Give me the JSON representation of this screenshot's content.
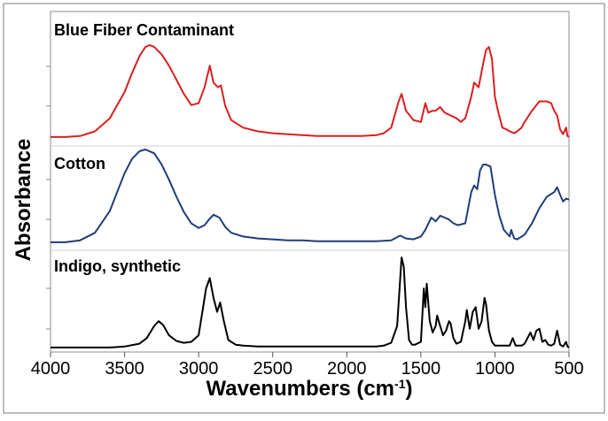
{
  "chart_data": {
    "type": "line",
    "xlabel_main": "Wavenumbers (cm",
    "xlabel_sup": "-1",
    "xlabel_close": ")",
    "ylabel": "Absorbance",
    "xlim": [
      4000,
      500
    ],
    "x_reversed": true,
    "x_ticks": [
      "4000",
      "3500",
      "3000",
      "2500",
      "2000",
      "1500",
      "1000",
      "500"
    ],
    "grid": false,
    "legend": "none",
    "series": [
      {
        "name": "Blue Fiber Contaminant",
        "color": "#d92020",
        "points": [
          [
            4000,
            0.02
          ],
          [
            3900,
            0.02
          ],
          [
            3800,
            0.03
          ],
          [
            3700,
            0.08
          ],
          [
            3600,
            0.22
          ],
          [
            3500,
            0.5
          ],
          [
            3450,
            0.7
          ],
          [
            3400,
            0.88
          ],
          [
            3360,
            0.98
          ],
          [
            3330,
            1.0
          ],
          [
            3300,
            0.98
          ],
          [
            3250,
            0.9
          ],
          [
            3200,
            0.78
          ],
          [
            3150,
            0.63
          ],
          [
            3100,
            0.48
          ],
          [
            3050,
            0.36
          ],
          [
            3000,
            0.38
          ],
          [
            2960,
            0.55
          ],
          [
            2925,
            0.78
          ],
          [
            2900,
            0.6
          ],
          [
            2870,
            0.55
          ],
          [
            2850,
            0.57
          ],
          [
            2820,
            0.35
          ],
          [
            2780,
            0.2
          ],
          [
            2700,
            0.12
          ],
          [
            2600,
            0.08
          ],
          [
            2500,
            0.06
          ],
          [
            2400,
            0.05
          ],
          [
            2300,
            0.04
          ],
          [
            2200,
            0.03
          ],
          [
            2100,
            0.03
          ],
          [
            2000,
            0.03
          ],
          [
            1900,
            0.03
          ],
          [
            1800,
            0.04
          ],
          [
            1750,
            0.06
          ],
          [
            1700,
            0.12
          ],
          [
            1650,
            0.4
          ],
          [
            1630,
            0.48
          ],
          [
            1600,
            0.3
          ],
          [
            1550,
            0.2
          ],
          [
            1500,
            0.18
          ],
          [
            1470,
            0.38
          ],
          [
            1450,
            0.28
          ],
          [
            1420,
            0.3
          ],
          [
            1400,
            0.3
          ],
          [
            1370,
            0.34
          ],
          [
            1340,
            0.28
          ],
          [
            1300,
            0.25
          ],
          [
            1260,
            0.22
          ],
          [
            1230,
            0.18
          ],
          [
            1200,
            0.22
          ],
          [
            1160,
            0.45
          ],
          [
            1140,
            0.6
          ],
          [
            1110,
            0.55
          ],
          [
            1080,
            0.8
          ],
          [
            1060,
            0.95
          ],
          [
            1040,
            0.98
          ],
          [
            1020,
            0.85
          ],
          [
            1000,
            0.45
          ],
          [
            980,
            0.3
          ],
          [
            950,
            0.12
          ],
          [
            920,
            0.1
          ],
          [
            900,
            0.08
          ],
          [
            870,
            0.06
          ],
          [
            850,
            0.08
          ],
          [
            820,
            0.12
          ],
          [
            800,
            0.18
          ],
          [
            750,
            0.3
          ],
          [
            700,
            0.4
          ],
          [
            650,
            0.4
          ],
          [
            620,
            0.38
          ],
          [
            600,
            0.3
          ],
          [
            580,
            0.25
          ],
          [
            560,
            0.1
          ],
          [
            540,
            0.05
          ],
          [
            520,
            0.12
          ],
          [
            510,
            0.03
          ],
          [
            500,
            0.02
          ]
        ]
      },
      {
        "name": "Cotton",
        "color": "#1f3d7a",
        "points": [
          [
            4000,
            0.02
          ],
          [
            3900,
            0.02
          ],
          [
            3800,
            0.04
          ],
          [
            3700,
            0.12
          ],
          [
            3600,
            0.35
          ],
          [
            3550,
            0.55
          ],
          [
            3500,
            0.75
          ],
          [
            3450,
            0.9
          ],
          [
            3400,
            0.98
          ],
          [
            3360,
            1.0
          ],
          [
            3300,
            0.96
          ],
          [
            3250,
            0.84
          ],
          [
            3200,
            0.68
          ],
          [
            3150,
            0.5
          ],
          [
            3100,
            0.34
          ],
          [
            3050,
            0.22
          ],
          [
            3000,
            0.17
          ],
          [
            2960,
            0.2
          ],
          [
            2930,
            0.26
          ],
          [
            2900,
            0.31
          ],
          [
            2860,
            0.28
          ],
          [
            2820,
            0.18
          ],
          [
            2780,
            0.12
          ],
          [
            2700,
            0.08
          ],
          [
            2600,
            0.06
          ],
          [
            2500,
            0.05
          ],
          [
            2400,
            0.04
          ],
          [
            2300,
            0.04
          ],
          [
            2200,
            0.03
          ],
          [
            2100,
            0.03
          ],
          [
            2000,
            0.03
          ],
          [
            1900,
            0.03
          ],
          [
            1800,
            0.03
          ],
          [
            1700,
            0.04
          ],
          [
            1640,
            0.09
          ],
          [
            1600,
            0.06
          ],
          [
            1550,
            0.05
          ],
          [
            1500,
            0.08
          ],
          [
            1470,
            0.15
          ],
          [
            1430,
            0.28
          ],
          [
            1400,
            0.24
          ],
          [
            1370,
            0.3
          ],
          [
            1340,
            0.28
          ],
          [
            1310,
            0.26
          ],
          [
            1280,
            0.22
          ],
          [
            1250,
            0.2
          ],
          [
            1200,
            0.22
          ],
          [
            1160,
            0.55
          ],
          [
            1140,
            0.62
          ],
          [
            1120,
            0.58
          ],
          [
            1100,
            0.78
          ],
          [
            1080,
            0.84
          ],
          [
            1060,
            0.84
          ],
          [
            1030,
            0.82
          ],
          [
            1000,
            0.52
          ],
          [
            970,
            0.3
          ],
          [
            940,
            0.15
          ],
          [
            900,
            0.08
          ],
          [
            890,
            0.15
          ],
          [
            870,
            0.06
          ],
          [
            850,
            0.05
          ],
          [
            800,
            0.1
          ],
          [
            750,
            0.22
          ],
          [
            700,
            0.38
          ],
          [
            650,
            0.5
          ],
          [
            600,
            0.55
          ],
          [
            580,
            0.6
          ],
          [
            560,
            0.52
          ],
          [
            540,
            0.45
          ],
          [
            520,
            0.48
          ],
          [
            500,
            0.47
          ]
        ]
      },
      {
        "name": "Indigo, synthetic",
        "color": "#000000",
        "points": [
          [
            4000,
            0.02
          ],
          [
            3800,
            0.02
          ],
          [
            3600,
            0.02
          ],
          [
            3500,
            0.03
          ],
          [
            3400,
            0.06
          ],
          [
            3350,
            0.12
          ],
          [
            3300,
            0.25
          ],
          [
            3270,
            0.3
          ],
          [
            3240,
            0.26
          ],
          [
            3200,
            0.15
          ],
          [
            3150,
            0.09
          ],
          [
            3100,
            0.07
          ],
          [
            3050,
            0.08
          ],
          [
            3000,
            0.15
          ],
          [
            2970,
            0.45
          ],
          [
            2950,
            0.65
          ],
          [
            2925,
            0.76
          ],
          [
            2900,
            0.55
          ],
          [
            2875,
            0.4
          ],
          [
            2855,
            0.5
          ],
          [
            2830,
            0.3
          ],
          [
            2800,
            0.1
          ],
          [
            2750,
            0.05
          ],
          [
            2700,
            0.04
          ],
          [
            2600,
            0.03
          ],
          [
            2500,
            0.03
          ],
          [
            2400,
            0.03
          ],
          [
            2300,
            0.03
          ],
          [
            2200,
            0.03
          ],
          [
            2100,
            0.03
          ],
          [
            2000,
            0.03
          ],
          [
            1900,
            0.03
          ],
          [
            1800,
            0.03
          ],
          [
            1750,
            0.04
          ],
          [
            1700,
            0.07
          ],
          [
            1660,
            0.25
          ],
          [
            1630,
            0.98
          ],
          [
            1615,
            0.88
          ],
          [
            1600,
            0.45
          ],
          [
            1580,
            0.1
          ],
          [
            1560,
            0.05
          ],
          [
            1540,
            0.05
          ],
          [
            1500,
            0.08
          ],
          [
            1480,
            0.65
          ],
          [
            1470,
            0.45
          ],
          [
            1460,
            0.7
          ],
          [
            1440,
            0.3
          ],
          [
            1420,
            0.18
          ],
          [
            1400,
            0.25
          ],
          [
            1390,
            0.36
          ],
          [
            1370,
            0.25
          ],
          [
            1350,
            0.15
          ],
          [
            1330,
            0.2
          ],
          [
            1310,
            0.3
          ],
          [
            1300,
            0.28
          ],
          [
            1280,
            0.12
          ],
          [
            1260,
            0.06
          ],
          [
            1230,
            0.08
          ],
          [
            1200,
            0.3
          ],
          [
            1190,
            0.42
          ],
          [
            1170,
            0.22
          ],
          [
            1150,
            0.4
          ],
          [
            1130,
            0.45
          ],
          [
            1110,
            0.22
          ],
          [
            1090,
            0.3
          ],
          [
            1070,
            0.55
          ],
          [
            1060,
            0.48
          ],
          [
            1040,
            0.2
          ],
          [
            1020,
            0.08
          ],
          [
            1000,
            0.04
          ],
          [
            950,
            0.04
          ],
          [
            900,
            0.04
          ],
          [
            880,
            0.12
          ],
          [
            860,
            0.04
          ],
          [
            820,
            0.04
          ],
          [
            800,
            0.06
          ],
          [
            760,
            0.18
          ],
          [
            740,
            0.1
          ],
          [
            720,
            0.2
          ],
          [
            700,
            0.22
          ],
          [
            680,
            0.08
          ],
          [
            660,
            0.1
          ],
          [
            640,
            0.05
          ],
          [
            620,
            0.04
          ],
          [
            600,
            0.06
          ],
          [
            580,
            0.2
          ],
          [
            560,
            0.05
          ],
          [
            540,
            0.03
          ],
          [
            520,
            0.08
          ],
          [
            510,
            0.03
          ],
          [
            500,
            0.02
          ]
        ]
      }
    ]
  }
}
